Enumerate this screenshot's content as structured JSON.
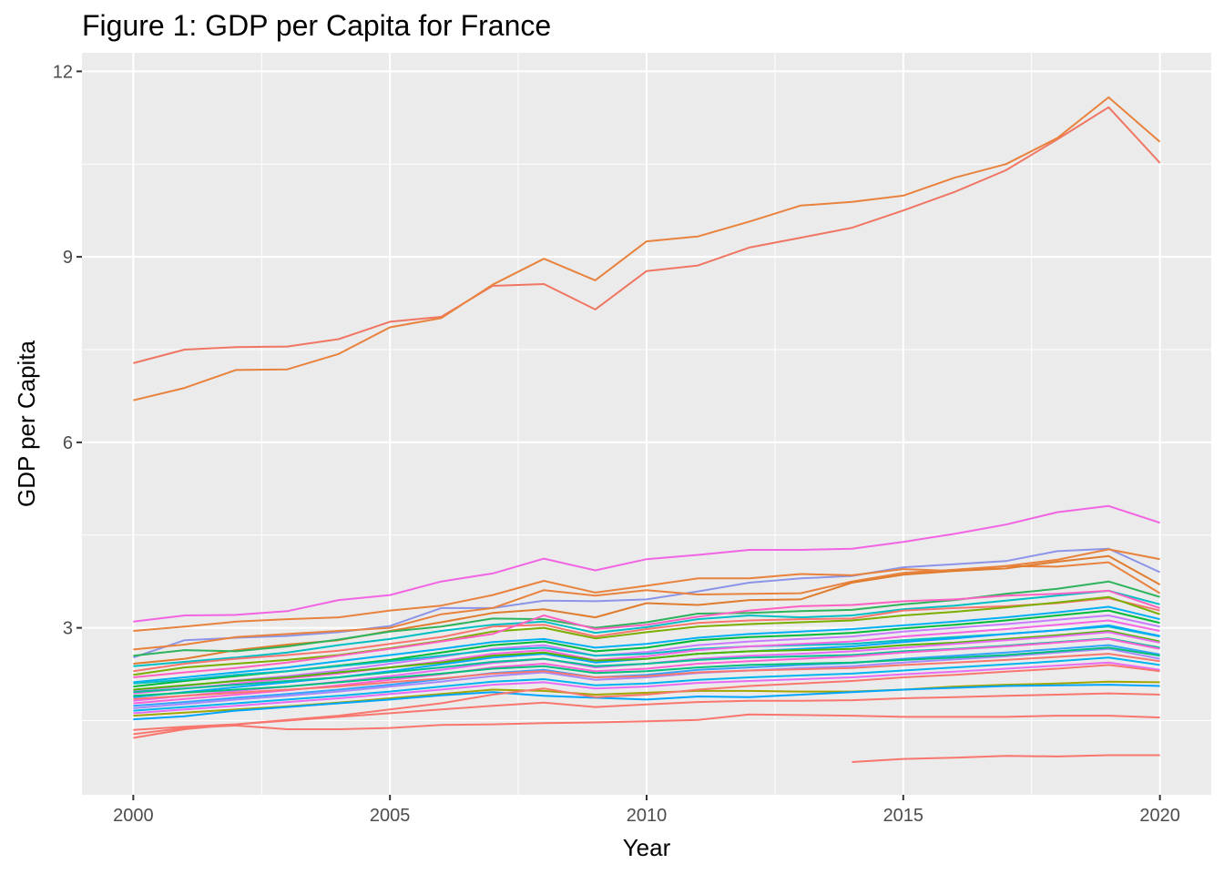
{
  "chart_data": {
    "type": "line",
    "title": "Figure 1: GDP per Capita for France",
    "xlabel": "Year",
    "ylabel": "GDP per Capita",
    "xlim": [
      1999,
      2021
    ],
    "ylim": [
      0.3,
      12.3
    ],
    "x_ticks": [
      2000,
      2005,
      2010,
      2015,
      2020
    ],
    "y_ticks": [
      3,
      6,
      9,
      12
    ],
    "grid": true,
    "panel_background": "#EBEBEB",
    "grid_color": "#FFFFFF",
    "legend": "none",
    "x": [
      2000,
      2001,
      2002,
      2003,
      2004,
      2005,
      2006,
      2007,
      2008,
      2009,
      2010,
      2011,
      2012,
      2013,
      2014,
      2015,
      2016,
      2017,
      2018,
      2019,
      2020
    ],
    "series": [
      {
        "color": "#F07663",
        "values": [
          7.28,
          7.5,
          7.54,
          7.55,
          7.67,
          7.95,
          8.03,
          8.53,
          8.56,
          8.15,
          8.77,
          8.86,
          9.15,
          9.31,
          9.47,
          9.75,
          10.05,
          10.4,
          10.9,
          11.42,
          10.52
        ]
      },
      {
        "color": "#E8823D",
        "values": [
          6.68,
          6.88,
          7.17,
          7.18,
          7.43,
          7.86,
          8.01,
          8.55,
          8.97,
          8.62,
          9.25,
          9.33,
          9.57,
          9.83,
          9.89,
          9.99,
          10.28,
          10.5,
          10.92,
          11.58,
          10.86
        ]
      },
      {
        "color": "#F264E3",
        "values": [
          3.1,
          3.2,
          3.21,
          3.27,
          3.45,
          3.53,
          3.75,
          3.88,
          4.12,
          3.93,
          4.11,
          4.18,
          4.26,
          4.26,
          4.28,
          4.39,
          4.52,
          4.67,
          4.87,
          4.97,
          4.7
        ]
      },
      {
        "color": "#8C94E8",
        "values": [
          2.52,
          2.8,
          2.84,
          2.87,
          2.93,
          3.03,
          3.32,
          3.32,
          3.44,
          3.43,
          3.46,
          3.59,
          3.73,
          3.8,
          3.84,
          3.98,
          4.03,
          4.08,
          4.24,
          4.28,
          3.9
        ]
      },
      {
        "color": "#E8823D",
        "values": [
          2.65,
          2.73,
          2.85,
          2.9,
          2.95,
          3.0,
          3.22,
          3.32,
          3.61,
          3.52,
          3.61,
          3.54,
          3.55,
          3.56,
          3.75,
          3.89,
          3.94,
          4.0,
          4.1,
          4.27,
          4.11
        ]
      },
      {
        "color": "#E8823D",
        "values": [
          2.95,
          3.02,
          3.1,
          3.14,
          3.17,
          3.28,
          3.36,
          3.53,
          3.76,
          3.57,
          3.68,
          3.8,
          3.8,
          3.87,
          3.85,
          3.95,
          3.92,
          4.0,
          3.99,
          4.06,
          3.56
        ]
      },
      {
        "color": "#E07C2E",
        "values": [
          2.42,
          2.5,
          2.64,
          2.73,
          2.8,
          2.95,
          3.09,
          3.24,
          3.3,
          3.17,
          3.4,
          3.37,
          3.45,
          3.46,
          3.73,
          3.86,
          3.92,
          3.96,
          4.07,
          4.16,
          3.7
        ]
      },
      {
        "color": "#2DB35B",
        "values": [
          2.55,
          2.64,
          2.62,
          2.7,
          2.81,
          2.94,
          3.02,
          3.15,
          3.14,
          3.0,
          3.09,
          3.23,
          3.24,
          3.27,
          3.29,
          3.38,
          3.45,
          3.55,
          3.63,
          3.75,
          3.5
        ]
      },
      {
        "color": "#00BFC4",
        "values": [
          2.38,
          2.45,
          2.52,
          2.6,
          2.72,
          2.82,
          2.95,
          3.05,
          3.1,
          2.92,
          3.01,
          3.14,
          3.2,
          3.17,
          3.2,
          3.3,
          3.36,
          3.44,
          3.52,
          3.6,
          3.38
        ]
      },
      {
        "color": "#F8766D",
        "values": [
          2.3,
          2.42,
          2.5,
          2.56,
          2.63,
          2.74,
          2.85,
          3.02,
          3.05,
          2.86,
          2.98,
          3.08,
          3.12,
          3.14,
          3.15,
          3.28,
          3.32,
          3.35,
          3.4,
          3.48,
          3.28
        ]
      },
      {
        "color": "#7CAE00",
        "values": [
          2.24,
          2.36,
          2.42,
          2.48,
          2.56,
          2.67,
          2.79,
          2.94,
          3.0,
          2.83,
          2.93,
          3.02,
          3.06,
          3.09,
          3.12,
          3.2,
          3.26,
          3.33,
          3.41,
          3.5,
          3.22
        ]
      },
      {
        "color": "#FF61C3",
        "values": [
          2.2,
          2.28,
          2.35,
          2.44,
          2.55,
          2.66,
          2.78,
          2.9,
          3.2,
          2.98,
          3.05,
          3.18,
          3.28,
          3.35,
          3.37,
          3.43,
          3.46,
          3.52,
          3.55,
          3.6,
          3.32
        ]
      },
      {
        "color": "#00B0F6",
        "values": [
          2.12,
          2.2,
          2.28,
          2.36,
          2.46,
          2.56,
          2.66,
          2.77,
          2.82,
          2.68,
          2.74,
          2.84,
          2.9,
          2.94,
          2.98,
          3.04,
          3.1,
          3.17,
          3.25,
          3.34,
          3.14
        ]
      },
      {
        "color": "#00BA38",
        "values": [
          2.05,
          2.14,
          2.22,
          2.3,
          2.39,
          2.48,
          2.6,
          2.72,
          2.78,
          2.62,
          2.68,
          2.8,
          2.85,
          2.88,
          2.92,
          2.99,
          3.05,
          3.12,
          3.2,
          3.28,
          3.08
        ]
      },
      {
        "color": "#C77CFF",
        "values": [
          1.98,
          2.06,
          2.15,
          2.22,
          2.31,
          2.42,
          2.53,
          2.66,
          2.72,
          2.55,
          2.61,
          2.72,
          2.78,
          2.82,
          2.86,
          2.94,
          3.0,
          3.06,
          3.13,
          3.2,
          3.02
        ]
      },
      {
        "color": "#00BFC4",
        "values": [
          2.1,
          2.16,
          2.24,
          2.3,
          2.38,
          2.46,
          2.55,
          2.64,
          2.68,
          2.55,
          2.58,
          2.66,
          2.7,
          2.72,
          2.74,
          2.8,
          2.85,
          2.9,
          2.96,
          3.02,
          2.86
        ]
      },
      {
        "color": "#F564E3",
        "values": [
          1.94,
          2.02,
          2.1,
          2.18,
          2.26,
          2.36,
          2.46,
          2.58,
          2.64,
          2.48,
          2.54,
          2.64,
          2.7,
          2.74,
          2.78,
          2.86,
          2.92,
          2.98,
          3.05,
          3.12,
          2.95
        ]
      },
      {
        "color": "#00A9FF",
        "values": [
          1.88,
          1.96,
          2.04,
          2.12,
          2.2,
          2.3,
          2.41,
          2.52,
          2.58,
          2.44,
          2.5,
          2.58,
          2.62,
          2.66,
          2.7,
          2.77,
          2.83,
          2.9,
          2.96,
          3.04,
          2.87
        ]
      },
      {
        "color": "#53B400",
        "values": [
          2.0,
          2.07,
          2.14,
          2.2,
          2.28,
          2.36,
          2.44,
          2.55,
          2.6,
          2.47,
          2.5,
          2.58,
          2.62,
          2.64,
          2.66,
          2.72,
          2.76,
          2.82,
          2.88,
          2.95,
          2.78
        ]
      },
      {
        "color": "#E76BF3",
        "values": [
          1.82,
          1.9,
          1.98,
          2.05,
          2.13,
          2.22,
          2.32,
          2.43,
          2.5,
          2.36,
          2.42,
          2.5,
          2.55,
          2.58,
          2.62,
          2.68,
          2.74,
          2.8,
          2.86,
          2.93,
          2.76
        ]
      },
      {
        "color": "#00C094",
        "values": [
          1.96,
          2.02,
          2.08,
          2.14,
          2.2,
          2.28,
          2.36,
          2.45,
          2.5,
          2.38,
          2.42,
          2.48,
          2.52,
          2.54,
          2.56,
          2.62,
          2.66,
          2.71,
          2.77,
          2.83,
          2.68
        ]
      },
      {
        "color": "#FB61D7",
        "values": [
          1.78,
          1.85,
          1.92,
          1.99,
          2.07,
          2.16,
          2.25,
          2.36,
          2.42,
          2.3,
          2.34,
          2.42,
          2.46,
          2.5,
          2.54,
          2.6,
          2.65,
          2.7,
          2.76,
          2.82,
          2.66
        ]
      },
      {
        "color": "#35A2FF",
        "values": [
          1.74,
          1.8,
          1.87,
          1.93,
          2.0,
          2.08,
          2.17,
          2.27,
          2.32,
          2.2,
          2.24,
          2.32,
          2.36,
          2.4,
          2.43,
          2.5,
          2.55,
          2.6,
          2.66,
          2.72,
          2.57
        ]
      },
      {
        "color": "#A58AFF",
        "values": [
          1.7,
          1.77,
          1.84,
          1.9,
          1.97,
          2.05,
          2.13,
          2.22,
          2.28,
          2.16,
          2.2,
          2.27,
          2.31,
          2.35,
          2.38,
          2.44,
          2.49,
          2.54,
          2.6,
          2.66,
          2.5
        ]
      },
      {
        "color": "#00BF7D",
        "values": [
          1.9,
          1.95,
          2.0,
          2.05,
          2.12,
          2.19,
          2.26,
          2.34,
          2.38,
          2.27,
          2.3,
          2.36,
          2.4,
          2.42,
          2.44,
          2.48,
          2.52,
          2.56,
          2.62,
          2.68,
          2.55
        ]
      },
      {
        "color": "#F8766D",
        "values": [
          1.85,
          1.9,
          1.95,
          2.0,
          2.05,
          2.12,
          2.18,
          2.26,
          2.3,
          2.2,
          2.22,
          2.28,
          2.31,
          2.33,
          2.35,
          2.4,
          2.44,
          2.48,
          2.53,
          2.58,
          2.46
        ]
      },
      {
        "color": "#00B4F0",
        "values": [
          1.66,
          1.72,
          1.78,
          1.84,
          1.9,
          1.97,
          2.05,
          2.13,
          2.17,
          2.07,
          2.1,
          2.16,
          2.2,
          2.23,
          2.26,
          2.31,
          2.36,
          2.41,
          2.46,
          2.52,
          2.4
        ]
      },
      {
        "color": "#E76BF3",
        "values": [
          1.62,
          1.68,
          1.74,
          1.8,
          1.86,
          1.93,
          2.0,
          2.08,
          2.12,
          2.02,
          2.05,
          2.11,
          2.14,
          2.17,
          2.2,
          2.25,
          2.29,
          2.34,
          2.39,
          2.44,
          2.32
        ]
      },
      {
        "color": "#A3A500",
        "values": [
          1.58,
          1.63,
          1.68,
          1.73,
          1.79,
          1.86,
          1.93,
          2.0,
          1.98,
          1.92,
          1.95,
          1.98,
          1.98,
          1.97,
          1.97,
          2.0,
          2.05,
          2.08,
          2.1,
          2.13,
          2.12
        ]
      },
      {
        "color": "#00A5FF",
        "values": [
          1.52,
          1.57,
          1.66,
          1.72,
          1.78,
          1.84,
          1.91,
          1.96,
          1.9,
          1.87,
          1.84,
          1.89,
          1.88,
          1.92,
          1.96,
          2.0,
          2.03,
          2.06,
          2.07,
          2.08,
          2.06
        ]
      },
      {
        "color": "#F8766D",
        "values": [
          1.35,
          1.4,
          1.44,
          1.5,
          1.56,
          1.62,
          1.68,
          1.74,
          1.79,
          1.72,
          1.76,
          1.8,
          1.82,
          1.82,
          1.83,
          1.86,
          1.88,
          1.9,
          1.92,
          1.94,
          1.92
        ]
      },
      {
        "color": "#F8766D",
        "values": [
          1.28,
          1.38,
          1.42,
          1.36,
          1.36,
          1.38,
          1.43,
          1.44,
          1.46,
          1.47,
          1.49,
          1.51,
          1.6,
          1.59,
          1.58,
          1.56,
          1.56,
          1.56,
          1.58,
          1.58,
          1.55
        ]
      },
      {
        "color": "#F8766D",
        "values": [
          1.22,
          1.36,
          1.44,
          1.51,
          1.58,
          1.68,
          1.78,
          1.92,
          2.02,
          1.88,
          1.92,
          2.0,
          2.06,
          2.1,
          2.14,
          2.2,
          2.24,
          2.29,
          2.34,
          2.4,
          2.3
        ]
      },
      {
        "color": "#F8766D",
        "values": [
          null,
          null,
          null,
          null,
          null,
          null,
          null,
          null,
          null,
          null,
          null,
          null,
          null,
          null,
          0.83,
          0.88,
          0.9,
          0.93,
          0.92,
          0.94,
          0.94
        ]
      }
    ]
  }
}
